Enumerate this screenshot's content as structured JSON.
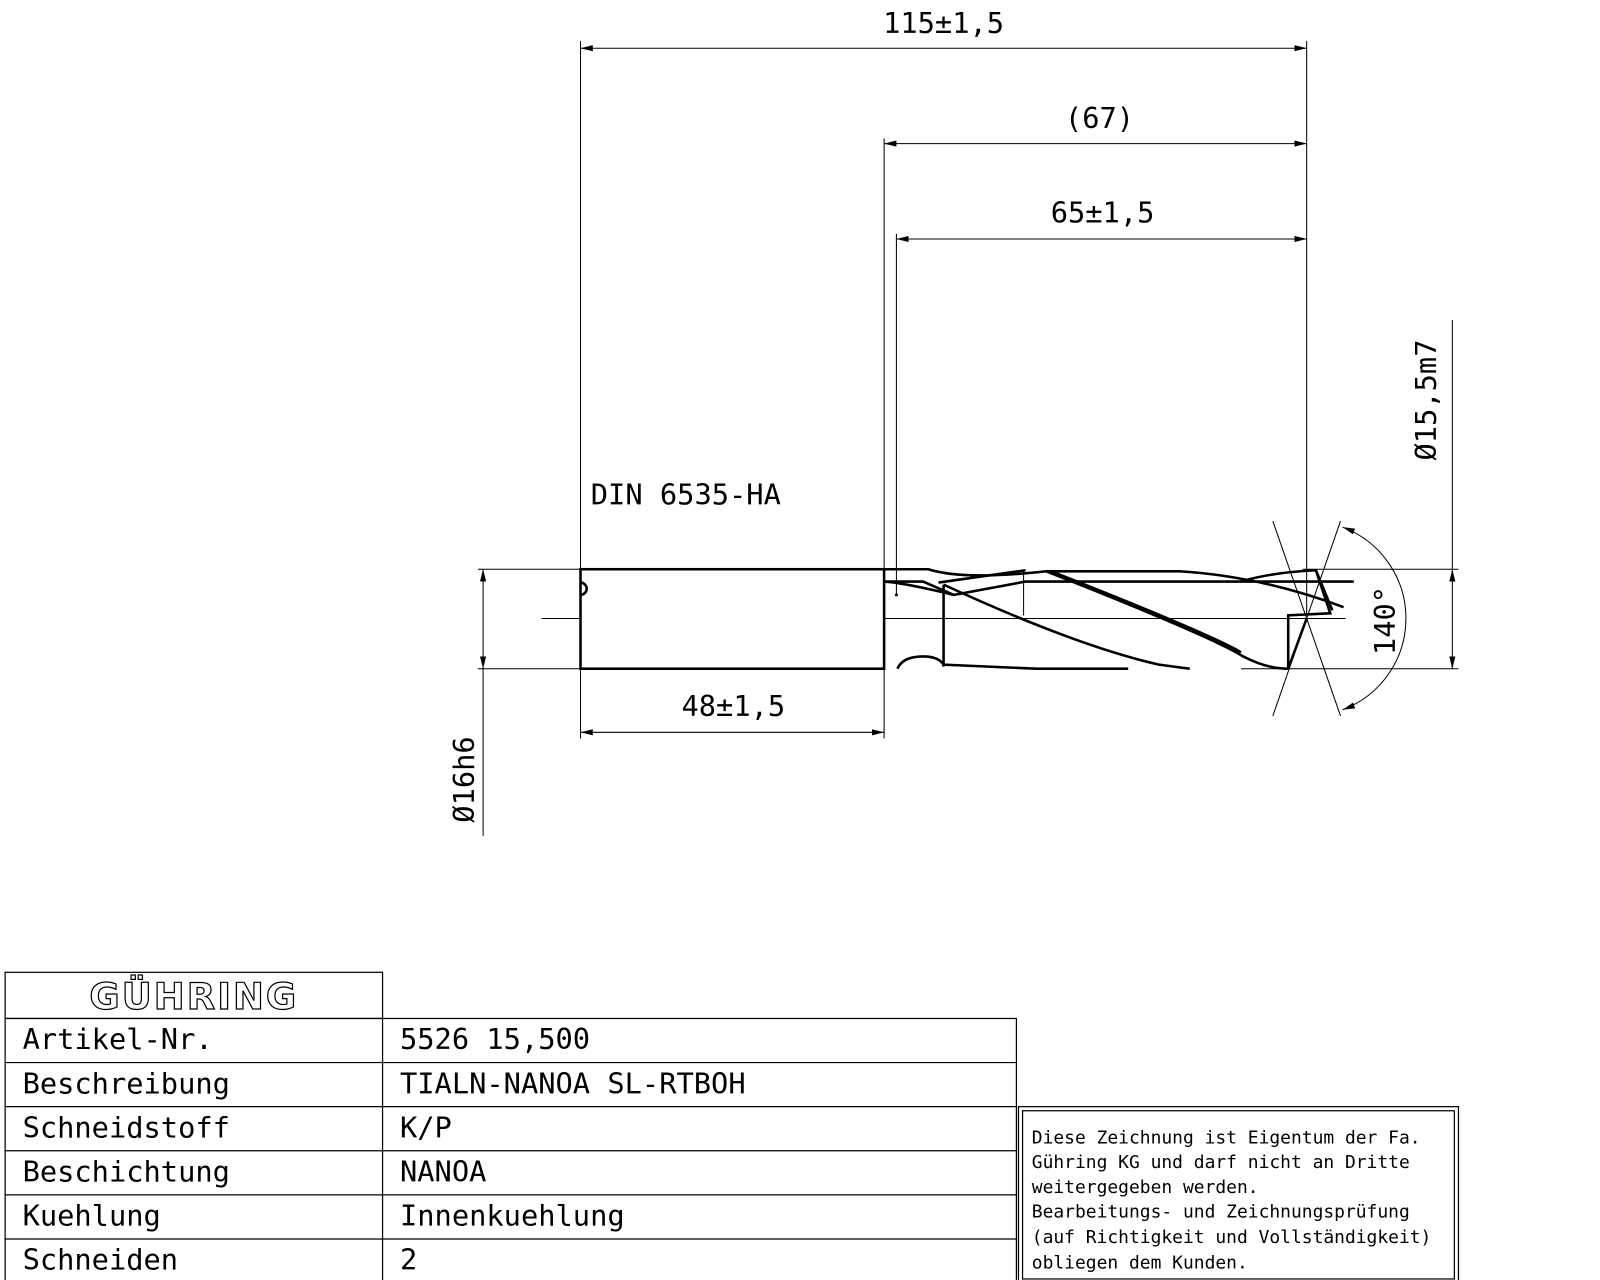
{
  "drawing": {
    "standard": "DIN 6535-HA",
    "dimensions": {
      "overall_length": "115±1,5",
      "flute_reference": "(67)",
      "flute_length": "65±1,5",
      "shank_length": "48±1,5",
      "shank_diameter": "Ø16h6",
      "cutting_diameter": "Ø15,5m7",
      "point_angle": "140°"
    }
  },
  "title_block": {
    "logo": "GÜHRING",
    "rows": [
      {
        "label": "Artikel-Nr.",
        "value": "5526 15,500"
      },
      {
        "label": "Beschreibung",
        "value": "TIALN-NANOA SL-RTBOH"
      },
      {
        "label": "Schneidstoff",
        "value": "K/P"
      },
      {
        "label": "Beschichtung",
        "value": "NANOA"
      },
      {
        "label": "Kuehlung",
        "value": "Innenkuehlung"
      },
      {
        "label": "Schneiden",
        "value": "2"
      }
    ]
  },
  "notice": {
    "lines": [
      "Diese Zeichnung ist Eigentum der Fa.",
      "Gühring KG und darf nicht an Dritte",
      "weitergegeben werden.",
      "Bearbeitungs- und Zeichnungsprüfung",
      "(auf Richtigkeit und Vollständigkeit)",
      "obliegen dem Kunden."
    ]
  }
}
